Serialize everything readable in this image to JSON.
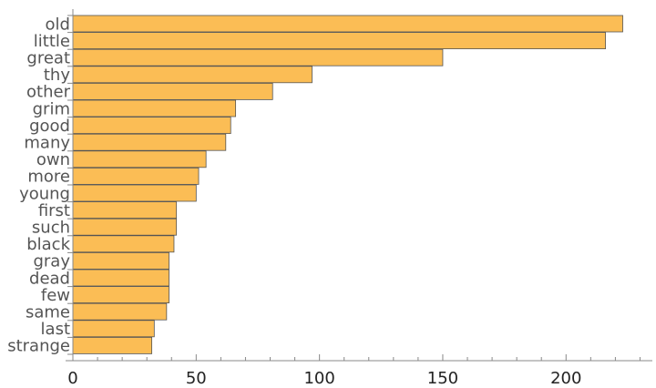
{
  "chart_data": {
    "type": "bar",
    "orientation": "horizontal",
    "categories": [
      "old",
      "little",
      "great",
      "thy",
      "other",
      "grim",
      "good",
      "many",
      "own",
      "more",
      "young",
      "first",
      "such",
      "black",
      "gray",
      "dead",
      "few",
      "same",
      "last",
      "strange"
    ],
    "values": [
      223,
      216,
      150,
      97,
      81,
      66,
      64,
      62,
      54,
      51,
      50,
      42,
      42,
      41,
      39,
      39,
      39,
      38,
      33,
      32
    ],
    "title": "",
    "xlabel": "",
    "ylabel": "",
    "xlim": [
      0,
      235
    ],
    "xticks": [
      0,
      50,
      100,
      150,
      200
    ],
    "grid": false,
    "colors": {
      "bar_fill": "#fbbd55",
      "bar_stroke": "#555555",
      "axis": "#888888"
    }
  }
}
